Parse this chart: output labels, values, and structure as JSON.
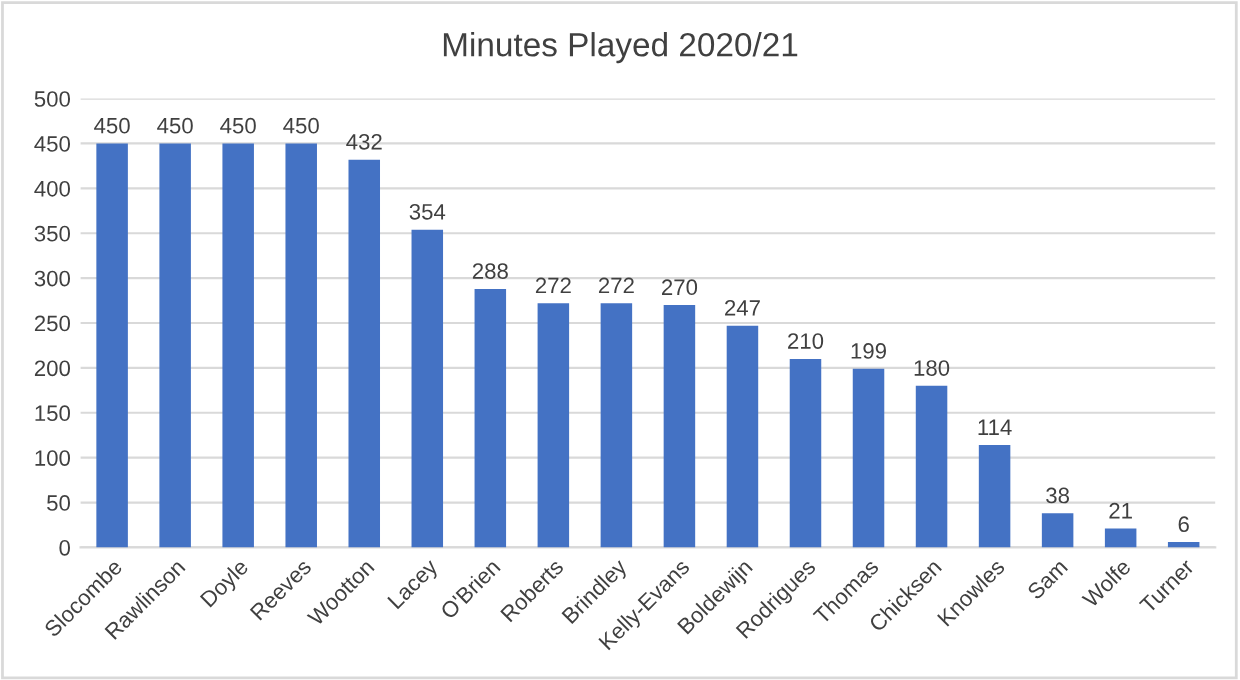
{
  "chart_data": {
    "type": "bar",
    "title": "Minutes Played 2020/21",
    "categories": [
      "Slocombe",
      "Rawlinson",
      "Doyle",
      "Reeves",
      "Wootton",
      "Lacey",
      "O'Brien",
      "Roberts",
      "Brindley",
      "Kelly-Evans",
      "Boldewijn",
      "Rodrigues",
      "Thomas",
      "Chicksen",
      "Knowles",
      "Sam",
      "Wolfe",
      "Turner"
    ],
    "values": [
      450,
      450,
      450,
      450,
      432,
      354,
      288,
      272,
      272,
      270,
      247,
      210,
      199,
      180,
      114,
      38,
      21,
      6
    ],
    "color": "#4472c4",
    "ylim": [
      0,
      500
    ],
    "yticks": [
      0,
      50,
      100,
      150,
      200,
      250,
      300,
      350,
      400,
      450,
      500
    ],
    "grid": "y",
    "data_labels": true
  }
}
